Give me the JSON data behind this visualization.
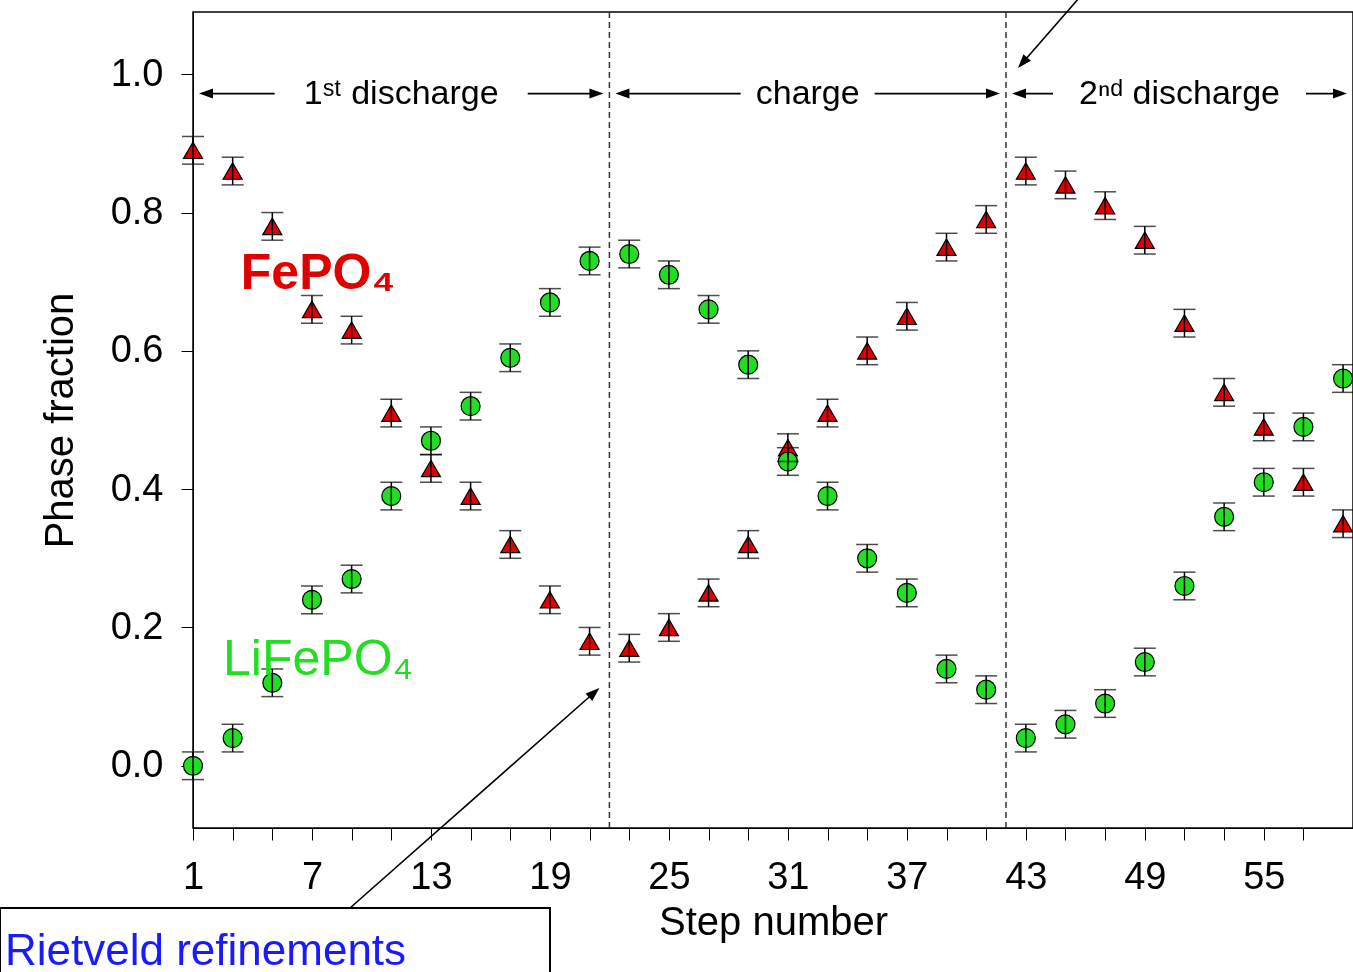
{
  "chart_data": {
    "type": "scatter",
    "xlabel": "Step number",
    "ylabel": "Phase fraction",
    "x": [
      1,
      3,
      5,
      7,
      9,
      11,
      13,
      15,
      17,
      19,
      21,
      23,
      25,
      27,
      29,
      31,
      33,
      35,
      37,
      39,
      41,
      43,
      45,
      47,
      49,
      51,
      53,
      55,
      57,
      59
    ],
    "series": [
      {
        "name": "FePO₄",
        "color": "#e00000",
        "marker": "triangle",
        "values": [
          0.89,
          0.86,
          0.78,
          0.66,
          0.63,
          0.51,
          0.43,
          0.39,
          0.32,
          0.24,
          0.18,
          0.17,
          0.2,
          0.25,
          0.32,
          0.46,
          0.51,
          0.6,
          0.65,
          0.75,
          0.79,
          0.86,
          0.84,
          0.81,
          0.76,
          0.64,
          0.54,
          0.49,
          0.41,
          0.35
        ],
        "errors": [
          0.02,
          0.02,
          0.02,
          0.02,
          0.02,
          0.02,
          0.02,
          0.02,
          0.02,
          0.02,
          0.02,
          0.02,
          0.02,
          0.02,
          0.02,
          0.02,
          0.02,
          0.02,
          0.02,
          0.02,
          0.02,
          0.02,
          0.02,
          0.02,
          0.02,
          0.02,
          0.02,
          0.02,
          0.02,
          0.02
        ]
      },
      {
        "name": "LiFePO₄",
        "color": "#22dd22",
        "marker": "circle",
        "values": [
          0.0,
          0.04,
          0.12,
          0.24,
          0.27,
          0.39,
          0.47,
          0.52,
          0.59,
          0.67,
          0.73,
          0.74,
          0.71,
          0.66,
          0.58,
          0.44,
          0.39,
          0.3,
          0.25,
          0.14,
          0.11,
          0.04,
          0.06,
          0.09,
          0.15,
          0.26,
          0.36,
          0.41,
          0.49,
          0.56
        ],
        "errors": [
          0.02,
          0.02,
          0.02,
          0.02,
          0.02,
          0.02,
          0.02,
          0.02,
          0.02,
          0.02,
          0.02,
          0.02,
          0.02,
          0.02,
          0.02,
          0.02,
          0.02,
          0.02,
          0.02,
          0.02,
          0.02,
          0.02,
          0.02,
          0.02,
          0.02,
          0.02,
          0.02,
          0.02,
          0.02,
          0.02
        ]
      }
    ],
    "xlim": [
      1,
      59.5
    ],
    "ylim": [
      -0.09,
      1.09
    ],
    "xticks": [
      1,
      {
        "value": 3,
        "label": null
      },
      {
        "value": 5,
        "label": null
      },
      7,
      {
        "value": 9,
        "label": null
      },
      {
        "value": 11,
        "label": null
      },
      13,
      {
        "value": 15,
        "label": null
      },
      {
        "value": 17,
        "label": null
      },
      19,
      {
        "value": 21,
        "label": null
      },
      {
        "value": 23,
        "label": null
      },
      25,
      {
        "value": 27,
        "label": null
      },
      {
        "value": 29,
        "label": null
      },
      31,
      {
        "value": 33,
        "label": null
      },
      {
        "value": 35,
        "label": null
      },
      37,
      {
        "value": 39,
        "label": null
      },
      {
        "value": 41,
        "label": null
      },
      43,
      {
        "value": 45,
        "label": null
      },
      {
        "value": 47,
        "label": null
      },
      49,
      {
        "value": 51,
        "label": null
      },
      {
        "value": 53,
        "label": null
      },
      55,
      {
        "value": 57,
        "label": null
      }
    ],
    "yticks": [
      {
        "value": 0,
        "label": "0.0"
      },
      0.2,
      0.4,
      0.6,
      0.8,
      {
        "value": 1,
        "label": "1.0"
      }
    ],
    "ref_lines": [
      {
        "axis": "x",
        "value": 22,
        "color": "#333333",
        "line_style": "dashed"
      },
      {
        "axis": "x",
        "value": 42,
        "color": "#333333",
        "line_style": "dashed"
      }
    ],
    "annotations": [
      "1ˢᵗ discharge",
      "charge",
      "2ⁿᵈ discharge",
      "Rietveld refinements"
    ],
    "grid": false
  }
}
